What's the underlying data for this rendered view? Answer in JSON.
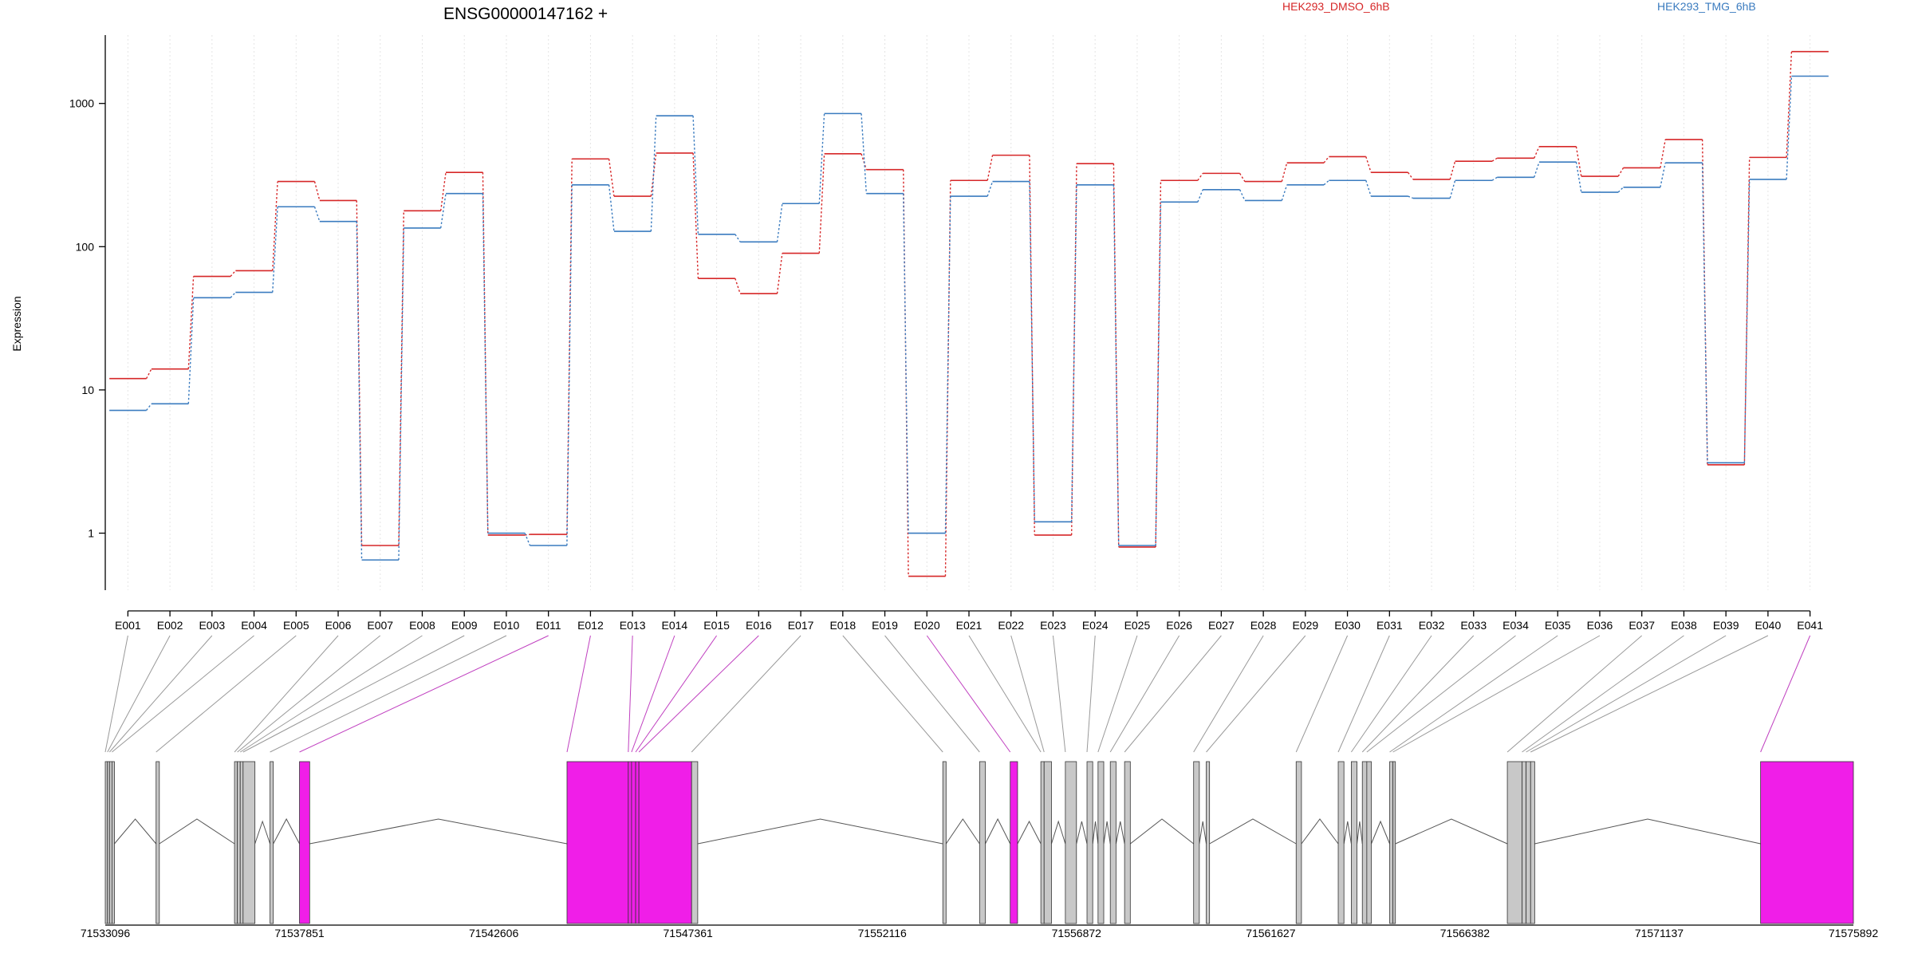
{
  "chart_data": {
    "type": "line",
    "title": "ENSG00000147162 +",
    "ylabel": "Expression",
    "y_scale": "log",
    "ylim": [
      0.4,
      3000
    ],
    "y_ticks": [
      1,
      10,
      100,
      1000
    ],
    "y_tick_labels": [
      "1",
      "10",
      "100",
      "1000"
    ],
    "grid": "vertical dotted at each exon",
    "legend_position": "top-right",
    "categories": [
      "E001",
      "E002",
      "E003",
      "E004",
      "E005",
      "E006",
      "E007",
      "E008",
      "E009",
      "E010",
      "E011",
      "E012",
      "E013",
      "E014",
      "E015",
      "E016",
      "E017",
      "E018",
      "E019",
      "E020",
      "E021",
      "E022",
      "E023",
      "E024",
      "E025",
      "E026",
      "E027",
      "E028",
      "E029",
      "E030",
      "E031",
      "E032",
      "E033",
      "E034",
      "E035",
      "E036",
      "E037",
      "E038",
      "E039",
      "E040",
      "E041"
    ],
    "series": [
      {
        "name": "HEK293_DMSO_6hB",
        "color": "#d62728",
        "values": [
          12,
          14,
          62,
          68,
          285,
          210,
          0.82,
          178,
          330,
          0.97,
          0.98,
          410,
          225,
          450,
          60,
          47,
          90,
          445,
          345,
          0.5,
          290,
          435,
          0.97,
          380,
          0.8,
          290,
          325,
          285,
          385,
          425,
          330,
          295,
          395,
          415,
          500,
          310,
          355,
          560,
          3.0,
          420,
          2300
        ]
      },
      {
        "name": "HEK293_TMG_6hB",
        "color": "#3a7bbf",
        "values": [
          7.2,
          8.0,
          44,
          48,
          190,
          150,
          0.65,
          135,
          235,
          1.0,
          0.82,
          270,
          128,
          820,
          122,
          108,
          200,
          850,
          235,
          1.0,
          225,
          285,
          1.2,
          270,
          0.82,
          205,
          250,
          210,
          270,
          290,
          225,
          218,
          290,
          305,
          390,
          240,
          260,
          385,
          3.1,
          295,
          1550
        ]
      }
    ],
    "gene_model": {
      "axis_ticks": [
        "71533096",
        "71537851",
        "71542606",
        "71547361",
        "71552116",
        "71556872",
        "71561627",
        "71566382",
        "71571137",
        "71575892"
      ],
      "range": [
        71533096,
        71575892
      ],
      "exon_colors": {
        "normal": "#c8c8c8",
        "highlighted": "#f01ee8"
      },
      "exon_link_color_highlighted": "#c040c0",
      "exons": [
        {
          "id": "E001",
          "start": 71533096,
          "end": 71533150,
          "highlight": false
        },
        {
          "id": "E002",
          "start": 71533150,
          "end": 71533200,
          "highlight": false
        },
        {
          "id": "E003",
          "start": 71533200,
          "end": 71533260,
          "highlight": false
        },
        {
          "id": "E004",
          "start": 71533260,
          "end": 71533320,
          "highlight": false
        },
        {
          "id": "E005",
          "start": 71534340,
          "end": 71534420,
          "highlight": false
        },
        {
          "id": "E006",
          "start": 71536260,
          "end": 71536330,
          "highlight": false
        },
        {
          "id": "E007",
          "start": 71536330,
          "end": 71536400,
          "highlight": false
        },
        {
          "id": "E008",
          "start": 71536400,
          "end": 71536470,
          "highlight": false
        },
        {
          "id": "E009",
          "start": 71536470,
          "end": 71536760,
          "highlight": false
        },
        {
          "id": "E010",
          "start": 71537130,
          "end": 71537210,
          "highlight": false
        },
        {
          "id": "E011",
          "start": 71537851,
          "end": 71538100,
          "highlight": true
        },
        {
          "id": "E012",
          "start": 71544400,
          "end": 71545900,
          "highlight": true
        },
        {
          "id": "E013",
          "start": 71545900,
          "end": 71545980,
          "highlight": true
        },
        {
          "id": "E014",
          "start": 71545980,
          "end": 71546080,
          "highlight": true
        },
        {
          "id": "E015",
          "start": 71546080,
          "end": 71546160,
          "highlight": true
        },
        {
          "id": "E016",
          "start": 71546160,
          "end": 71547450,
          "highlight": true
        },
        {
          "id": "E017",
          "start": 71547450,
          "end": 71547600,
          "highlight": false
        },
        {
          "id": "E018",
          "start": 71553600,
          "end": 71553680,
          "highlight": false
        },
        {
          "id": "E019",
          "start": 71554500,
          "end": 71554640,
          "highlight": false
        },
        {
          "id": "E020",
          "start": 71555250,
          "end": 71555430,
          "highlight": true
        },
        {
          "id": "E021",
          "start": 71556000,
          "end": 71556080,
          "highlight": false
        },
        {
          "id": "E022",
          "start": 71556080,
          "end": 71556260,
          "highlight": false
        },
        {
          "id": "E023",
          "start": 71556600,
          "end": 71556872,
          "highlight": false
        },
        {
          "id": "E024",
          "start": 71557130,
          "end": 71557270,
          "highlight": false
        },
        {
          "id": "E025",
          "start": 71557400,
          "end": 71557540,
          "highlight": false
        },
        {
          "id": "E026",
          "start": 71557700,
          "end": 71557840,
          "highlight": false
        },
        {
          "id": "E027",
          "start": 71558050,
          "end": 71558190,
          "highlight": false
        },
        {
          "id": "E028",
          "start": 71559740,
          "end": 71559880,
          "highlight": false
        },
        {
          "id": "E029",
          "start": 71560050,
          "end": 71560130,
          "highlight": false
        },
        {
          "id": "E030",
          "start": 71562250,
          "end": 71562380,
          "highlight": false
        },
        {
          "id": "E031",
          "start": 71563280,
          "end": 71563420,
          "highlight": false
        },
        {
          "id": "E032",
          "start": 71563600,
          "end": 71563740,
          "highlight": false
        },
        {
          "id": "E033",
          "start": 71563870,
          "end": 71563980,
          "highlight": false
        },
        {
          "id": "E034",
          "start": 71563980,
          "end": 71564090,
          "highlight": false
        },
        {
          "id": "E035",
          "start": 71564540,
          "end": 71564620,
          "highlight": false
        },
        {
          "id": "E036",
          "start": 71564620,
          "end": 71564680,
          "highlight": false
        },
        {
          "id": "E037",
          "start": 71567420,
          "end": 71567780,
          "highlight": false
        },
        {
          "id": "E038",
          "start": 71567780,
          "end": 71567880,
          "highlight": false
        },
        {
          "id": "E039",
          "start": 71567880,
          "end": 71567990,
          "highlight": false
        },
        {
          "id": "E040",
          "start": 71567990,
          "end": 71568090,
          "highlight": false
        },
        {
          "id": "E041",
          "start": 71573620,
          "end": 71575892,
          "highlight": true
        }
      ]
    }
  }
}
